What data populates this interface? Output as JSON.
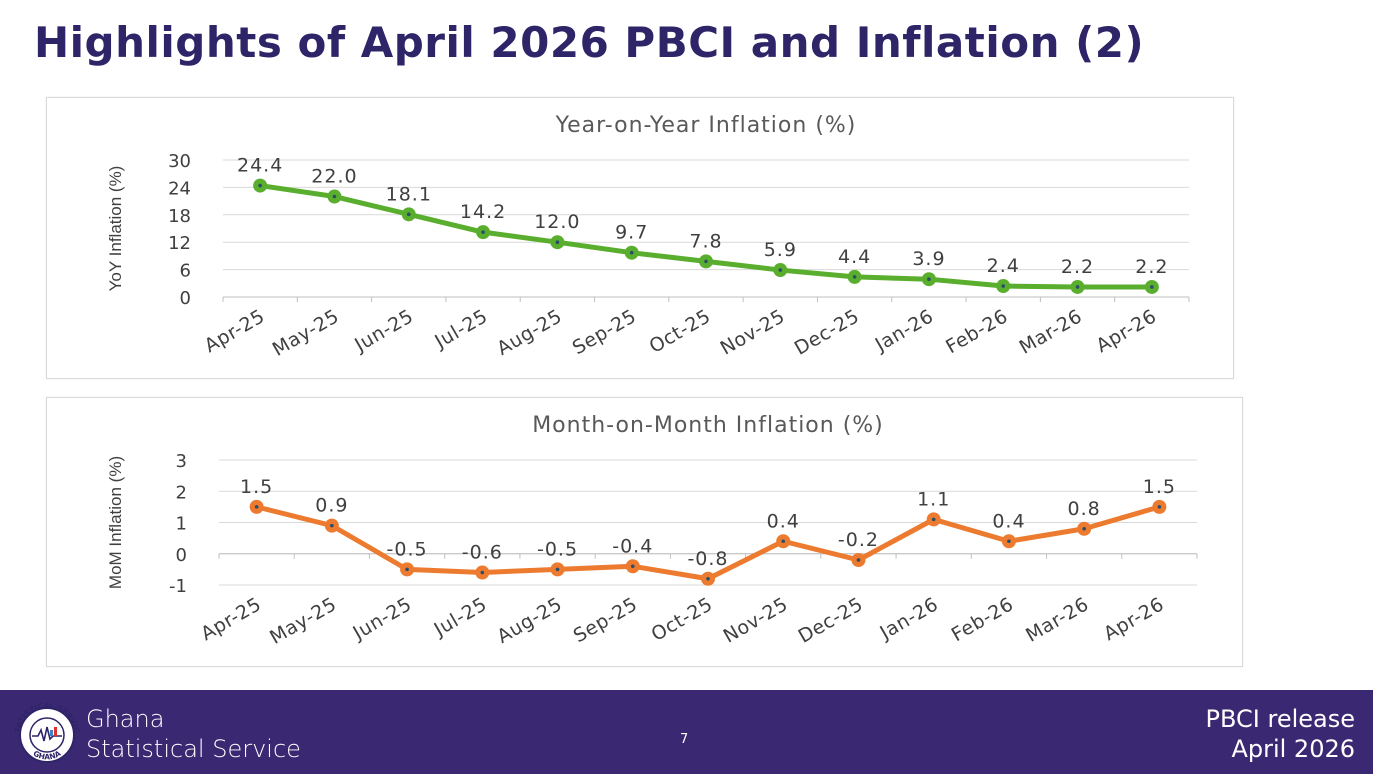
{
  "slide": {
    "title": "Highlights of April 2026 PBCI and Inflation (2)"
  },
  "footer": {
    "org_line1": "Ghana",
    "org_line2": "Statistical Service",
    "page_number": "7",
    "release_line1": "PBCI release",
    "release_line2": "April  2026",
    "logo_top_text": "STATISTICAL SERVICE",
    "logo_bottom_text": "GHANA",
    "colors": {
      "bar": "#3b2872",
      "text": "#ffffff"
    }
  },
  "chart_data": [
    {
      "type": "line",
      "title": "Year-on-Year Inflation (%)",
      "xlabel": "",
      "ylabel": "YoY Inflation (%)",
      "categories": [
        "Apr-25",
        "May-25",
        "Jun-25",
        "Jul-25",
        "Aug-25",
        "Sep-25",
        "Oct-25",
        "Nov-25",
        "Dec-25",
        "Jan-26",
        "Feb-26",
        "Mar-26",
        "Apr-26"
      ],
      "values": [
        24.4,
        22.0,
        18.1,
        14.2,
        12.0,
        9.7,
        7.8,
        5.9,
        4.4,
        3.9,
        2.4,
        2.2,
        2.2
      ],
      "labels": [
        "24.4",
        "22.0",
        "18.1",
        "14.2",
        "12.0",
        "9.7",
        "7.8",
        "5.9",
        "4.4",
        "3.9",
        "2.4",
        "2.2",
        "2.2"
      ],
      "ylim": [
        0,
        30
      ],
      "yticks": [
        "0",
        "6",
        "12",
        "18",
        "24",
        "30"
      ],
      "grid": true,
      "color": "#5aae2e"
    },
    {
      "type": "line",
      "title": "Month-on-Month Inflation (%)",
      "xlabel": "",
      "ylabel": "MoM Inflation (%)",
      "categories": [
        "Apr-25",
        "May-25",
        "Jun-25",
        "Jul-25",
        "Aug-25",
        "Sep-25",
        "Oct-25",
        "Nov-25",
        "Dec-25",
        "Jan-26",
        "Feb-26",
        "Mar-26",
        "Apr-26"
      ],
      "values": [
        1.5,
        0.9,
        -0.5,
        -0.6,
        -0.5,
        -0.4,
        -0.8,
        0.4,
        -0.2,
        1.1,
        0.4,
        0.8,
        1.5
      ],
      "labels": [
        "1.5",
        "0.9",
        "-0.5",
        "-0.6",
        "-0.5",
        "-0.4",
        "-0.8",
        "0.4",
        "-0.2",
        "1.1",
        "0.4",
        "0.8",
        "1.5"
      ],
      "ylim": [
        -1,
        3
      ],
      "yticks": [
        "-1",
        "0",
        "1",
        "2",
        "3"
      ],
      "grid": true,
      "color": "#ec7b2f"
    }
  ]
}
